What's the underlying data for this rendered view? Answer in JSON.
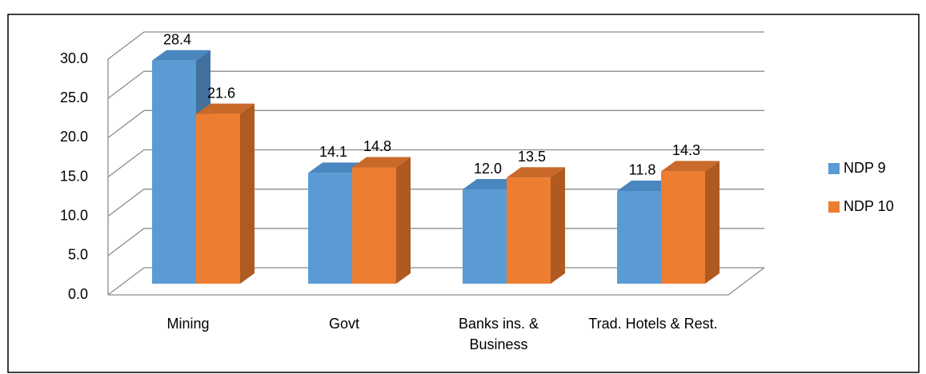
{
  "chart_data": {
    "type": "bar3d",
    "categories": [
      "Mining",
      "Govt",
      "Banks ins. & Business",
      "Trad. Hotels & Rest."
    ],
    "series": [
      {
        "name": "NDP 9",
        "color": "#5b9bd5",
        "values": [
          28.4,
          14.1,
          12.0,
          11.8
        ],
        "value_labels": [
          "28.4",
          "14.1",
          "12.0",
          "11.8"
        ]
      },
      {
        "name": "NDP 10",
        "color": "#ed7d31",
        "values": [
          21.6,
          14.8,
          13.5,
          14.3
        ],
        "value_labels": [
          "21.6",
          "14.8",
          "13.5",
          "14.3"
        ]
      }
    ],
    "ylim": [
      0,
      30
    ],
    "yticks": [
      {
        "value": 0,
        "label": "0.0"
      },
      {
        "value": 5,
        "label": "5.0"
      },
      {
        "value": 10,
        "label": "10.0"
      },
      {
        "value": 15,
        "label": "15.0"
      },
      {
        "value": 20,
        "label": "20.0"
      },
      {
        "value": 25,
        "label": "25.0"
      },
      {
        "value": 30,
        "label": "30.0"
      }
    ],
    "grid": true,
    "legend": "right"
  }
}
